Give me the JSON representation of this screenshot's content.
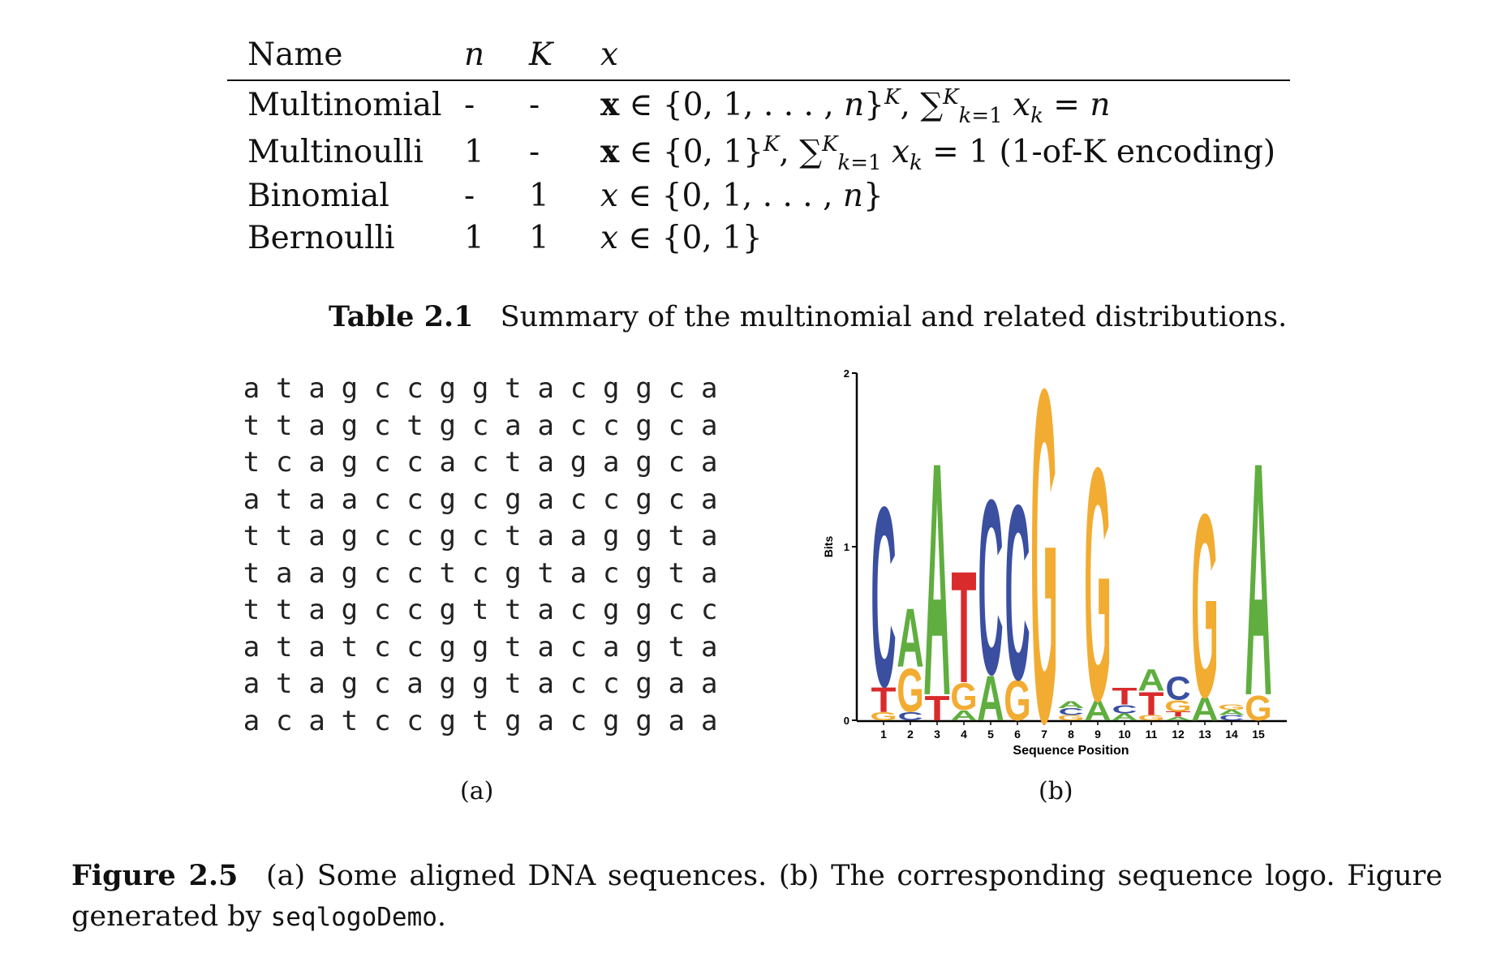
{
  "table": {
    "headers": {
      "name": "Name",
      "n": "n",
      "K": "K",
      "x": "x"
    },
    "rows": [
      {
        "name": "Multinomial",
        "n": "-",
        "K": "-"
      },
      {
        "name": "Multinoulli",
        "n": "1",
        "K": "-"
      },
      {
        "name": "Binomial",
        "n": "-",
        "K": "1"
      },
      {
        "name": "Bernoulli",
        "n": "1",
        "K": "1"
      }
    ],
    "encoding_text": "(1-of-K encoding)",
    "caption_label": "Table 2.1",
    "caption_text": "Summary of the multinomial and related distributions."
  },
  "sequences": [
    "atagccggtacggca",
    "ttagctgcaaccgca",
    "tcagccactagagca",
    "ataaccgcgaccgca",
    "ttagccgctaaggta",
    "taagcctcgtacgta",
    "ttagccgttacggcc",
    "atatccggtacagta",
    "atagcaggtaccgaa",
    "acatccgtgacggaa"
  ],
  "subcaption_a": "(a)",
  "subcaption_b": "(b)",
  "chart_data": {
    "type": "sequence-logo",
    "ylabel": "Bits",
    "xlabel": "Sequence Position",
    "ylim": [
      0,
      2
    ],
    "yticks": [
      "0",
      "1",
      "2"
    ],
    "positions": [
      "1",
      "2",
      "3",
      "4",
      "5",
      "6",
      "7",
      "8",
      "9",
      "10",
      "11",
      "12",
      "13",
      "14",
      "15"
    ],
    "colors": {
      "A": "#5fae3f",
      "C": "#3a4fa0",
      "G": "#f2ac32",
      "T": "#d92b2b"
    },
    "stacks": [
      [
        [
          "G",
          0.05
        ],
        [
          "T",
          0.15
        ],
        [
          "C",
          1.08
        ]
      ],
      [
        [
          "C",
          0.05
        ],
        [
          "G",
          0.26
        ],
        [
          "A",
          0.35
        ]
      ],
      [
        [
          "T",
          0.15
        ],
        [
          "A",
          1.4
        ]
      ],
      [
        [
          "A",
          0.06
        ],
        [
          "G",
          0.16
        ],
        [
          "T",
          0.67
        ]
      ],
      [
        [
          "A",
          0.27
        ],
        [
          "C",
          1.05
        ]
      ],
      [
        [
          "G",
          0.24
        ],
        [
          "C",
          1.05
        ]
      ],
      [
        [
          "G",
          2.0
        ]
      ],
      [
        [
          "G",
          0.03
        ],
        [
          "C",
          0.04
        ],
        [
          "A",
          0.04
        ]
      ],
      [
        [
          "A",
          0.12
        ],
        [
          "G",
          1.4
        ]
      ],
      [
        [
          "A",
          0.04
        ],
        [
          "C",
          0.05
        ],
        [
          "T",
          0.1
        ]
      ],
      [
        [
          "G",
          0.03
        ],
        [
          "T",
          0.14
        ],
        [
          "A",
          0.13
        ]
      ],
      [
        [
          "A",
          0.02
        ],
        [
          "T",
          0.03
        ],
        [
          "G",
          0.07
        ],
        [
          "C",
          0.14
        ]
      ],
      [
        [
          "A",
          0.14
        ],
        [
          "G",
          1.1
        ]
      ],
      [
        [
          "C",
          0.03
        ],
        [
          "A",
          0.03
        ],
        [
          "G",
          0.03
        ]
      ],
      [
        [
          "G",
          0.15
        ],
        [
          "A",
          1.4
        ]
      ]
    ]
  },
  "figure_caption": {
    "label": "Figure 2.5",
    "text": "(a) Some aligned DNA sequences. (b) The corresponding sequence logo. Figure generated by",
    "code": "seqlogoDemo",
    "end": "."
  }
}
